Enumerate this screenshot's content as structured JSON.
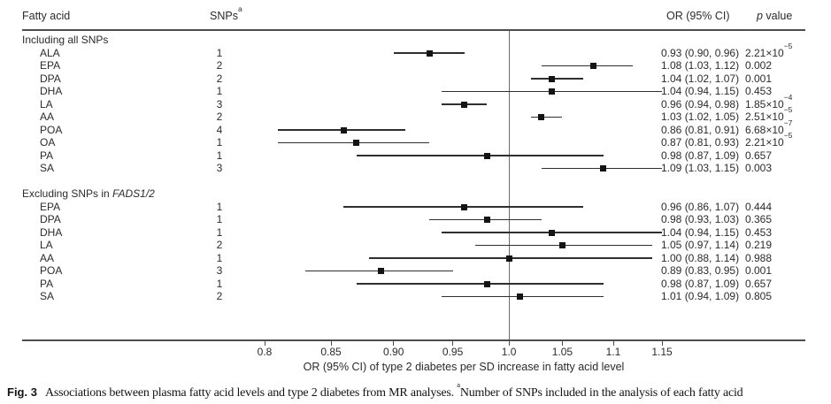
{
  "header": {
    "fatty_acid": "Fatty acid",
    "snps": "SNPs",
    "snps_sup": "a",
    "or_ci": "OR (95% CI)",
    "p_italic": "p",
    "p_rest": " value"
  },
  "caption": {
    "label": "Fig. 3",
    "text": "Associations between plasma fatty acid levels and type 2 diabetes from MR analyses. ",
    "sup": "a",
    "text2": "Number of SNPs included in the analysis of each fatty acid"
  },
  "chart_data": {
    "type": "scatter",
    "subtype": "forest-plot",
    "xlabel": "OR (95% CI) of type 2 diabetes per SD increase in fatty acid level",
    "x_scale": "log",
    "xlim": [
      0.8,
      1.15
    ],
    "x_ticks": [
      0.8,
      0.85,
      0.9,
      0.95,
      1.0,
      1.05,
      1.1,
      1.15
    ],
    "x_tick_labels": [
      "0.8",
      "0.85",
      "0.90",
      "0.95",
      "1.0",
      "1.05",
      "1.1",
      "1.15"
    ],
    "ref_line": 1.0,
    "grid": "off",
    "columns": [
      "Fatty acid",
      "SNPs",
      "OR (95% CI)",
      "p value"
    ],
    "sections": [
      {
        "title": "Including all SNPs",
        "title_italic": "",
        "rows": [
          {
            "fatty_acid": "ALA",
            "snps": "1",
            "or": 0.93,
            "ci_low": 0.9,
            "ci_high": 0.96,
            "or_ci_text": "0.93 (0.90, 0.96)",
            "p_text": "2.21×10^−5"
          },
          {
            "fatty_acid": "EPA",
            "snps": "2",
            "or": 1.08,
            "ci_low": 1.03,
            "ci_high": 1.12,
            "or_ci_text": "1.08 (1.03, 1.12)",
            "p_text": "0.002"
          },
          {
            "fatty_acid": "DPA",
            "snps": "2",
            "or": 1.04,
            "ci_low": 1.02,
            "ci_high": 1.07,
            "or_ci_text": "1.04 (1.02, 1.07)",
            "p_text": "0.001"
          },
          {
            "fatty_acid": "DHA",
            "snps": "1",
            "or": 1.04,
            "ci_low": 0.94,
            "ci_high": 1.15,
            "or_ci_text": "1.04 (0.94, 1.15)",
            "p_text": "0.453"
          },
          {
            "fatty_acid": "LA",
            "snps": "3",
            "or": 0.96,
            "ci_low": 0.94,
            "ci_high": 0.98,
            "or_ci_text": "0.96 (0.94, 0.98)",
            "p_text": "1.85×10^−4"
          },
          {
            "fatty_acid": "AA",
            "snps": "2",
            "or": 1.03,
            "ci_low": 1.02,
            "ci_high": 1.05,
            "or_ci_text": "1.03 (1.02, 1.05)",
            "p_text": "2.51×10^−5"
          },
          {
            "fatty_acid": "POA",
            "snps": "4",
            "or": 0.86,
            "ci_low": 0.81,
            "ci_high": 0.91,
            "or_ci_text": "0.86 (0.81, 0.91)",
            "p_text": "6.68×10^−7"
          },
          {
            "fatty_acid": "OA",
            "snps": "1",
            "or": 0.87,
            "ci_low": 0.81,
            "ci_high": 0.93,
            "or_ci_text": "0.87 (0.81, 0.93)",
            "p_text": "2.21×10^−5"
          },
          {
            "fatty_acid": "PA",
            "snps": "1",
            "or": 0.98,
            "ci_low": 0.87,
            "ci_high": 1.09,
            "or_ci_text": "0.98 (0.87, 1.09)",
            "p_text": "0.657"
          },
          {
            "fatty_acid": "SA",
            "snps": "3",
            "or": 1.09,
            "ci_low": 1.03,
            "ci_high": 1.15,
            "or_ci_text": "1.09 (1.03, 1.15)",
            "p_text": "0.003"
          }
        ]
      },
      {
        "title": "Excluding SNPs in ",
        "title_italic": "FADS1/2",
        "rows": [
          {
            "fatty_acid": "EPA",
            "snps": "1",
            "or": 0.96,
            "ci_low": 0.86,
            "ci_high": 1.07,
            "or_ci_text": "0.96 (0.86, 1.07)",
            "p_text": "0.444"
          },
          {
            "fatty_acid": "DPA",
            "snps": "1",
            "or": 0.98,
            "ci_low": 0.93,
            "ci_high": 1.03,
            "or_ci_text": "0.98 (0.93, 1.03)",
            "p_text": "0.365"
          },
          {
            "fatty_acid": "DHA",
            "snps": "1",
            "or": 1.04,
            "ci_low": 0.94,
            "ci_high": 1.15,
            "or_ci_text": "1.04 (0.94, 1.15)",
            "p_text": "0.453"
          },
          {
            "fatty_acid": "LA",
            "snps": "2",
            "or": 1.05,
            "ci_low": 0.97,
            "ci_high": 1.14,
            "or_ci_text": "1.05 (0.97, 1.14)",
            "p_text": "0.219"
          },
          {
            "fatty_acid": "AA",
            "snps": "1",
            "or": 1.0,
            "ci_low": 0.88,
            "ci_high": 1.14,
            "or_ci_text": "1.00 (0.88, 1.14)",
            "p_text": "0.988"
          },
          {
            "fatty_acid": "POA",
            "snps": "3",
            "or": 0.89,
            "ci_low": 0.83,
            "ci_high": 0.95,
            "or_ci_text": "0.89 (0.83, 0.95)",
            "p_text": "0.001"
          },
          {
            "fatty_acid": "PA",
            "snps": "1",
            "or": 0.98,
            "ci_low": 0.87,
            "ci_high": 1.09,
            "or_ci_text": "0.98 (0.87, 1.09)",
            "p_text": "0.657"
          },
          {
            "fatty_acid": "SA",
            "snps": "2",
            "or": 1.01,
            "ci_low": 0.94,
            "ci_high": 1.09,
            "or_ci_text": "1.01 (0.94, 1.09)",
            "p_text": "0.805"
          }
        ]
      }
    ]
  }
}
